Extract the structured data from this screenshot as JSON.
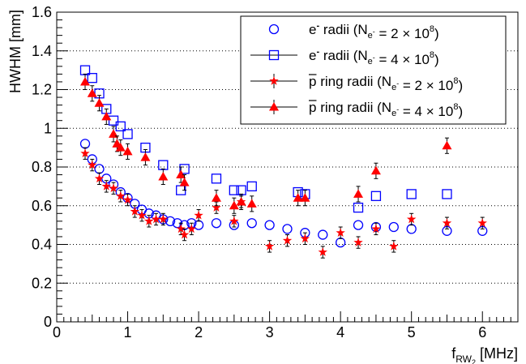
{
  "chart_data": {
    "type": "scatter",
    "xlabel": {
      "main": "f",
      "sub": "RW",
      "subsub": "2",
      "unit": " [MHz]"
    },
    "ylabel": "HWHM [mm]",
    "xlim": [
      0,
      6.5
    ],
    "ylim": [
      0,
      1.6
    ],
    "x_ticks": [
      0,
      1,
      2,
      3,
      4,
      5,
      6
    ],
    "y_ticks": [
      0,
      0.2,
      0.4,
      0.6,
      0.8,
      1,
      1.2,
      1.4,
      1.6
    ],
    "x_tick_labels": [
      "0",
      "1",
      "2",
      "3",
      "4",
      "5",
      "6"
    ],
    "y_tick_labels": [
      "0",
      "0.2",
      "0.4",
      "0.6",
      "0.8",
      "1",
      "1.2",
      "1.4",
      "1.6"
    ],
    "grid": {
      "horizontal": true,
      "style": "dotted"
    },
    "legend": {
      "placement": "top-right",
      "entries": [
        {
          "pre": "e",
          "sup": "-",
          "mid": " radii (N",
          "sub": "e",
          "subsup": "-",
          "eq": " = 2 × 10",
          "pow": "8",
          "close": ")"
        },
        {
          "pre": "e",
          "sup": "-",
          "mid": " radii (N",
          "sub": "e",
          "subsup": "-",
          "eq": " = 4 × 10",
          "pow": "8",
          "close": ")"
        },
        {
          "pre": "p",
          "sup": "",
          "mid": " ring radii (N",
          "sub": "e",
          "subsup": "-",
          "eq": " = 2 × 10",
          "pow": "8",
          "close": ")"
        },
        {
          "pre": "p",
          "sup": "",
          "mid": " ring radii (N",
          "sub": "e",
          "subsup": "-",
          "eq": " = 4 × 10",
          "pow": "8",
          "close": ")"
        }
      ]
    },
    "series": [
      {
        "marker": "circle-open",
        "color": "#0000ff",
        "points": [
          [
            0.4,
            0.92
          ],
          [
            0.5,
            0.84
          ],
          [
            0.6,
            0.79
          ],
          [
            0.7,
            0.74
          ],
          [
            0.8,
            0.71
          ],
          [
            0.9,
            0.67
          ],
          [
            1.0,
            0.64
          ],
          [
            1.1,
            0.61
          ],
          [
            1.2,
            0.58
          ],
          [
            1.3,
            0.56
          ],
          [
            1.4,
            0.55
          ],
          [
            1.5,
            0.53
          ],
          [
            1.6,
            0.52
          ],
          [
            1.7,
            0.51
          ],
          [
            1.8,
            0.5
          ],
          [
            1.9,
            0.51
          ],
          [
            2.0,
            0.5
          ],
          [
            2.25,
            0.51
          ],
          [
            2.5,
            0.5
          ],
          [
            2.75,
            0.51
          ],
          [
            3.0,
            0.5
          ],
          [
            3.25,
            0.48
          ],
          [
            3.5,
            0.46
          ],
          [
            3.75,
            0.45
          ],
          [
            4.0,
            0.41
          ],
          [
            4.25,
            0.5
          ],
          [
            4.5,
            0.49
          ],
          [
            4.75,
            0.49
          ],
          [
            5.0,
            0.48
          ],
          [
            5.5,
            0.47
          ],
          [
            6.0,
            0.47
          ]
        ]
      },
      {
        "marker": "square-open",
        "color": "#0000ff",
        "points": [
          [
            0.4,
            1.3
          ],
          [
            0.5,
            1.26
          ],
          [
            0.6,
            1.18
          ],
          [
            0.7,
            1.1
          ],
          [
            0.8,
            1.04
          ],
          [
            0.9,
            1.01
          ],
          [
            1.0,
            0.97
          ],
          [
            1.25,
            0.9
          ],
          [
            1.5,
            0.81
          ],
          [
            1.75,
            0.68
          ],
          [
            1.8,
            0.79
          ],
          [
            2.25,
            0.74
          ],
          [
            2.5,
            0.68
          ],
          [
            2.6,
            0.68
          ],
          [
            2.75,
            0.7
          ],
          [
            3.4,
            0.67
          ],
          [
            3.5,
            0.66
          ],
          [
            4.25,
            0.59
          ],
          [
            4.5,
            0.65
          ],
          [
            5.0,
            0.66
          ],
          [
            5.5,
            0.66
          ]
        ]
      },
      {
        "marker": "star-filled",
        "color": "#ff0000",
        "points": [
          [
            0.4,
            0.87,
            0.03
          ],
          [
            0.5,
            0.81,
            0.03
          ],
          [
            0.6,
            0.74,
            0.03
          ],
          [
            0.7,
            0.7,
            0.03
          ],
          [
            0.8,
            0.69,
            0.03
          ],
          [
            0.9,
            0.65,
            0.03
          ],
          [
            1.0,
            0.63,
            0.03
          ],
          [
            1.1,
            0.57,
            0.03
          ],
          [
            1.2,
            0.55,
            0.03
          ],
          [
            1.3,
            0.52,
            0.03
          ],
          [
            1.4,
            0.53,
            0.03
          ],
          [
            1.5,
            0.53,
            0.03
          ],
          [
            1.75,
            0.48,
            0.03
          ],
          [
            1.8,
            0.45,
            0.03
          ],
          [
            1.9,
            0.48,
            0.03
          ],
          [
            2.0,
            0.55,
            0.03
          ],
          [
            2.25,
            0.59,
            0.03
          ],
          [
            2.5,
            0.52,
            0.03
          ],
          [
            2.6,
            0.62,
            0.03
          ],
          [
            3.0,
            0.39,
            0.03
          ],
          [
            3.25,
            0.42,
            0.03
          ],
          [
            3.5,
            0.43,
            0.03
          ],
          [
            3.75,
            0.36,
            0.03
          ],
          [
            4.0,
            0.46,
            0.03
          ],
          [
            4.25,
            0.41,
            0.03
          ],
          [
            4.5,
            0.48,
            0.03
          ],
          [
            4.75,
            0.39,
            0.03
          ],
          [
            5.0,
            0.53,
            0.03
          ],
          [
            5.5,
            0.51,
            0.03
          ],
          [
            6.0,
            0.51,
            0.03
          ]
        ]
      },
      {
        "marker": "triangle-filled",
        "color": "#ff0000",
        "points": [
          [
            0.4,
            1.24,
            0.04
          ],
          [
            0.5,
            1.18,
            0.04
          ],
          [
            0.6,
            1.13,
            0.04
          ],
          [
            0.7,
            1.06,
            0.04
          ],
          [
            0.8,
            0.97,
            0.04
          ],
          [
            0.85,
            0.92,
            0.04
          ],
          [
            0.9,
            0.9,
            0.04
          ],
          [
            1.0,
            0.88,
            0.04
          ],
          [
            1.25,
            0.85,
            0.04
          ],
          [
            1.5,
            0.75,
            0.04
          ],
          [
            1.75,
            0.76,
            0.04
          ],
          [
            1.8,
            0.72,
            0.04
          ],
          [
            2.25,
            0.64,
            0.04
          ],
          [
            2.5,
            0.6,
            0.04
          ],
          [
            2.6,
            0.62,
            0.04
          ],
          [
            2.75,
            0.61,
            0.04
          ],
          [
            3.4,
            0.64,
            0.04
          ],
          [
            3.5,
            0.64,
            0.04
          ],
          [
            4.25,
            0.66,
            0.04
          ],
          [
            4.5,
            0.78,
            0.04
          ],
          [
            5.5,
            0.91,
            0.04
          ]
        ]
      }
    ]
  }
}
